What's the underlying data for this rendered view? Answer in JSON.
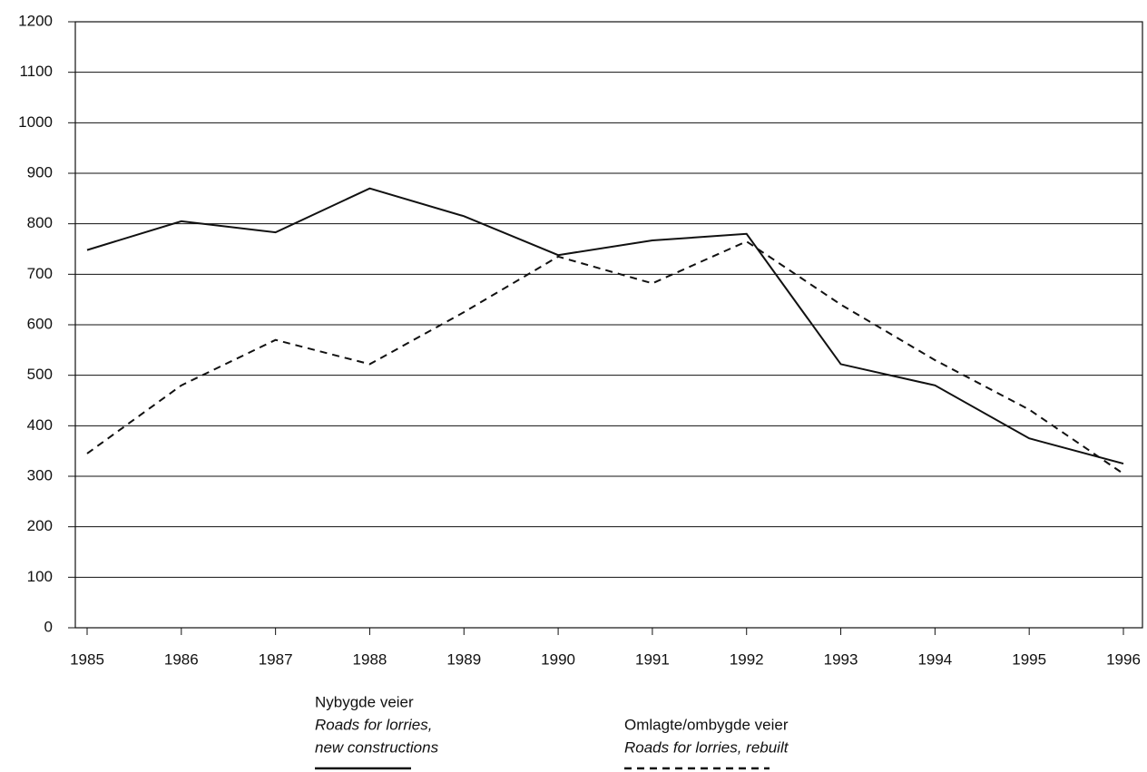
{
  "chart_data": {
    "type": "line",
    "categories": [
      "1985",
      "1986",
      "1987",
      "1988",
      "1989",
      "1990",
      "1991",
      "1992",
      "1993",
      "1994",
      "1995",
      "1996"
    ],
    "series": [
      {
        "name": "Nybygde veier",
        "subtitle_lines": [
          "Roads for lorries,",
          "new constructions"
        ],
        "color": "#111111",
        "dash": "solid",
        "values": [
          748,
          805,
          783,
          870,
          815,
          738,
          767,
          780,
          522,
          480,
          375,
          325
        ]
      },
      {
        "name": "Omlagte/ombygde veier",
        "subtitle_lines": [
          "Roads for lorries, rebuilt"
        ],
        "color": "#111111",
        "dash": "dashed",
        "values": [
          345,
          480,
          570,
          522,
          625,
          735,
          682,
          765,
          640,
          530,
          432,
          305
        ]
      }
    ],
    "ylim": [
      0,
      1200
    ],
    "yticks": [
      0,
      100,
      200,
      300,
      400,
      500,
      600,
      700,
      800,
      900,
      1000,
      1100,
      1200
    ],
    "grid": true
  }
}
